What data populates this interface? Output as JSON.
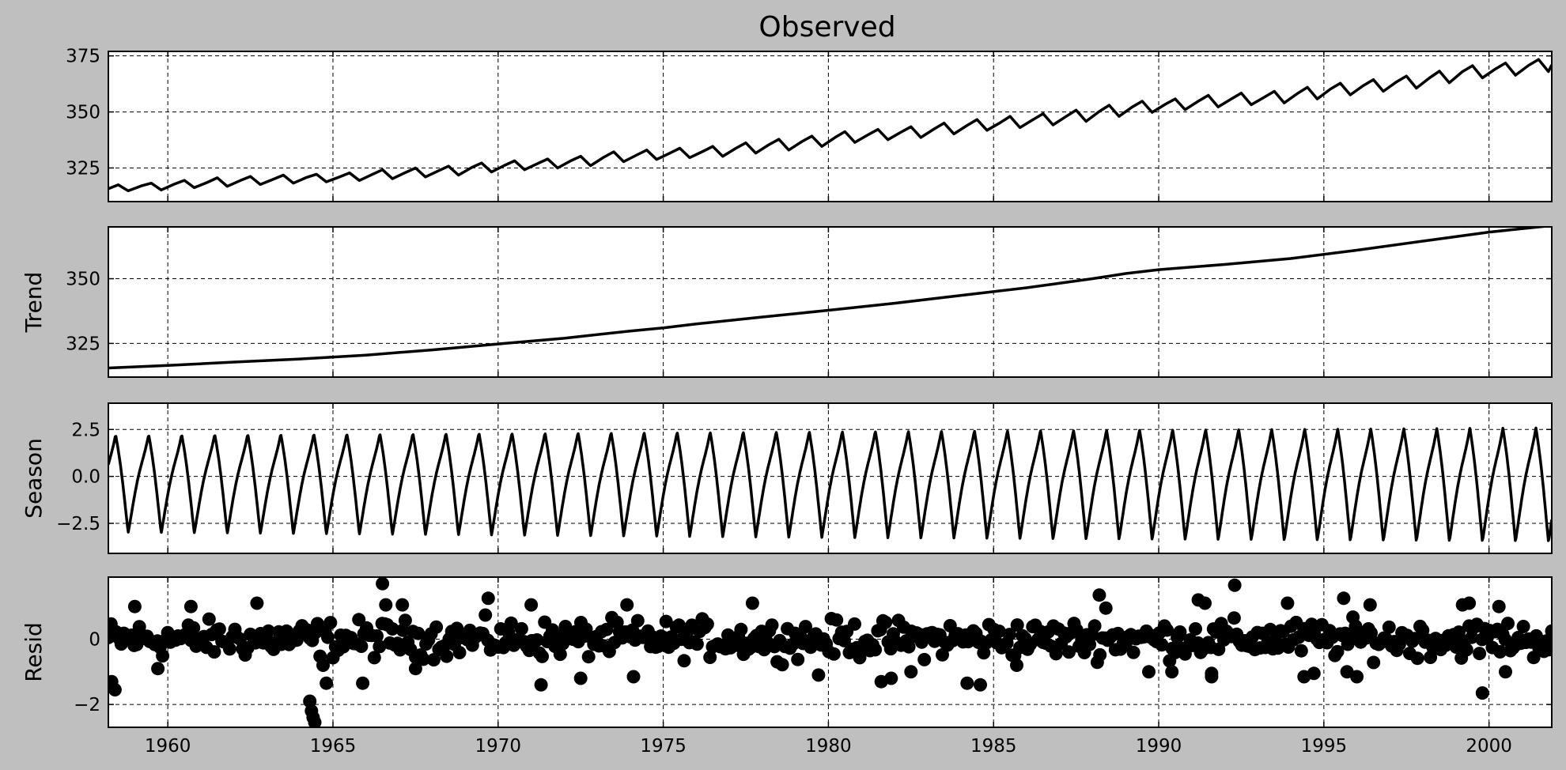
{
  "chart_data": [
    {
      "type": "line",
      "key": "observed",
      "title": "Observed",
      "ylabel": "",
      "xlim": [
        1958.2,
        2001.9
      ],
      "ylim": [
        310,
        377
      ],
      "yticks": [
        325,
        350,
        375
      ],
      "ytick_labels": [
        "325",
        "350",
        "375"
      ],
      "grid": true,
      "series": [
        {
          "name": "observed",
          "points": [
            [
              1958.2,
              315.7
            ],
            [
              1958.5,
              317.5
            ],
            [
              1958.8,
              314.8
            ],
            [
              1959.2,
              317.0
            ],
            [
              1959.5,
              318.2
            ],
            [
              1959.8,
              315.2
            ],
            [
              1960.2,
              317.8
            ],
            [
              1960.5,
              319.5
            ],
            [
              1960.8,
              316.2
            ],
            [
              1961.2,
              318.6
            ],
            [
              1961.5,
              320.6
            ],
            [
              1961.8,
              316.8
            ],
            [
              1962.2,
              319.4
            ],
            [
              1962.5,
              321.2
            ],
            [
              1962.8,
              317.6
            ],
            [
              1963.2,
              320.0
            ],
            [
              1963.5,
              321.8
            ],
            [
              1963.8,
              318.2
            ],
            [
              1964.2,
              320.8
            ],
            [
              1964.5,
              322.2
            ],
            [
              1964.8,
              318.8
            ],
            [
              1965.2,
              321.0
            ],
            [
              1965.5,
              322.8
            ],
            [
              1965.8,
              319.4
            ],
            [
              1966.2,
              322.2
            ],
            [
              1966.5,
              324.2
            ],
            [
              1966.8,
              320.2
            ],
            [
              1967.2,
              323.0
            ],
            [
              1967.5,
              325.0
            ],
            [
              1967.8,
              321.0
            ],
            [
              1968.2,
              323.8
            ],
            [
              1968.5,
              325.8
            ],
            [
              1968.8,
              321.8
            ],
            [
              1969.2,
              325.2
            ],
            [
              1969.5,
              327.2
            ],
            [
              1969.8,
              323.2
            ],
            [
              1970.2,
              326.2
            ],
            [
              1970.5,
              328.2
            ],
            [
              1970.8,
              324.2
            ],
            [
              1971.2,
              327.0
            ],
            [
              1971.5,
              329.0
            ],
            [
              1971.8,
              325.0
            ],
            [
              1972.2,
              328.2
            ],
            [
              1972.5,
              330.2
            ],
            [
              1972.8,
              326.0
            ],
            [
              1973.2,
              329.8
            ],
            [
              1973.5,
              332.2
            ],
            [
              1973.8,
              327.8
            ],
            [
              1974.2,
              330.8
            ],
            [
              1974.5,
              333.0
            ],
            [
              1974.8,
              328.8
            ],
            [
              1975.2,
              331.6
            ],
            [
              1975.5,
              333.8
            ],
            [
              1975.8,
              329.6
            ],
            [
              1976.2,
              332.4
            ],
            [
              1976.5,
              334.6
            ],
            [
              1976.8,
              330.2
            ],
            [
              1977.2,
              333.8
            ],
            [
              1977.5,
              336.2
            ],
            [
              1977.8,
              331.6
            ],
            [
              1978.2,
              335.4
            ],
            [
              1978.5,
              337.8
            ],
            [
              1978.8,
              333.0
            ],
            [
              1979.2,
              336.8
            ],
            [
              1979.5,
              339.2
            ],
            [
              1979.8,
              334.6
            ],
            [
              1980.2,
              338.6
            ],
            [
              1980.5,
              341.2
            ],
            [
              1980.8,
              336.4
            ],
            [
              1981.2,
              339.8
            ],
            [
              1981.5,
              342.2
            ],
            [
              1981.8,
              337.6
            ],
            [
              1982.2,
              341.0
            ],
            [
              1982.5,
              343.4
            ],
            [
              1982.8,
              338.6
            ],
            [
              1983.2,
              342.4
            ],
            [
              1983.5,
              345.0
            ],
            [
              1983.8,
              340.2
            ],
            [
              1984.2,
              344.0
            ],
            [
              1984.5,
              346.6
            ],
            [
              1984.8,
              341.8
            ],
            [
              1985.2,
              345.2
            ],
            [
              1985.5,
              348.0
            ],
            [
              1985.8,
              343.0
            ],
            [
              1986.2,
              346.6
            ],
            [
              1986.5,
              349.2
            ],
            [
              1986.8,
              344.2
            ],
            [
              1987.2,
              348.0
            ],
            [
              1987.5,
              350.8
            ],
            [
              1987.8,
              345.8
            ],
            [
              1988.2,
              350.2
            ],
            [
              1988.5,
              353.0
            ],
            [
              1988.8,
              348.0
            ],
            [
              1989.2,
              352.2
            ],
            [
              1989.5,
              354.8
            ],
            [
              1989.8,
              349.8
            ],
            [
              1990.2,
              353.4
            ],
            [
              1990.5,
              355.8
            ],
            [
              1990.8,
              351.0
            ],
            [
              1991.2,
              354.8
            ],
            [
              1991.5,
              357.4
            ],
            [
              1991.8,
              352.2
            ],
            [
              1992.2,
              355.8
            ],
            [
              1992.5,
              358.4
            ],
            [
              1992.8,
              353.2
            ],
            [
              1993.2,
              356.6
            ],
            [
              1993.5,
              359.2
            ],
            [
              1993.8,
              354.0
            ],
            [
              1994.2,
              358.2
            ],
            [
              1994.5,
              361.0
            ],
            [
              1994.8,
              355.8
            ],
            [
              1995.2,
              360.2
            ],
            [
              1995.5,
              362.8
            ],
            [
              1995.8,
              357.6
            ],
            [
              1996.2,
              361.8
            ],
            [
              1996.5,
              364.4
            ],
            [
              1996.8,
              359.2
            ],
            [
              1997.2,
              363.4
            ],
            [
              1997.5,
              366.0
            ],
            [
              1997.8,
              360.6
            ],
            [
              1998.2,
              365.2
            ],
            [
              1998.5,
              368.2
            ],
            [
              1998.8,
              363.0
            ],
            [
              1999.2,
              368.0
            ],
            [
              1999.5,
              370.6
            ],
            [
              1999.8,
              365.2
            ],
            [
              2000.2,
              369.2
            ],
            [
              2000.5,
              371.8
            ],
            [
              2000.8,
              366.4
            ],
            [
              2001.2,
              370.8
            ],
            [
              2001.5,
              373.4
            ],
            [
              2001.8,
              368.0
            ],
            [
              2001.9,
              371.0
            ]
          ]
        }
      ]
    },
    {
      "type": "line",
      "key": "trend",
      "title": "",
      "ylabel": "Trend",
      "xlim": [
        1958.2,
        2001.9
      ],
      "ylim": [
        312,
        370
      ],
      "yticks": [
        325,
        350
      ],
      "ytick_labels": [
        "325",
        "350"
      ],
      "grid": true,
      "series": [
        {
          "name": "trend",
          "points": [
            [
              1958.2,
              315.5
            ],
            [
              1960,
              316.5
            ],
            [
              1962,
              317.8
            ],
            [
              1964,
              319.0
            ],
            [
              1966,
              320.5
            ],
            [
              1968,
              322.5
            ],
            [
              1970,
              324.8
            ],
            [
              1972,
              327.0
            ],
            [
              1974,
              329.8
            ],
            [
              1975,
              331.0
            ],
            [
              1976,
              332.5
            ],
            [
              1978,
              335.2
            ],
            [
              1980,
              337.8
            ],
            [
              1982,
              340.5
            ],
            [
              1984,
              343.5
            ],
            [
              1986,
              346.5
            ],
            [
              1988,
              350.0
            ],
            [
              1989,
              352.0
            ],
            [
              1990,
              353.5
            ],
            [
              1992,
              355.5
            ],
            [
              1994,
              357.8
            ],
            [
              1996,
              361.0
            ],
            [
              1998,
              364.5
            ],
            [
              2000,
              368.0
            ],
            [
              2001.9,
              370.5
            ]
          ]
        }
      ]
    },
    {
      "type": "line",
      "key": "season",
      "title": "",
      "ylabel": "Season",
      "xlim": [
        1958.2,
        2001.9
      ],
      "ylim": [
        -4.1,
        3.9
      ],
      "yticks": [
        -2.5,
        0.0,
        2.5
      ],
      "ytick_labels": [
        "−2.5",
        "0.0",
        "2.5"
      ],
      "grid": true,
      "seasonal_amplitude_start": 3.0,
      "seasonal_amplitude_end": 3.5,
      "period_years": 1
    },
    {
      "type": "scatter",
      "key": "resid",
      "title": "",
      "ylabel": "Resid",
      "xlim": [
        1958.2,
        2001.9
      ],
      "ylim": [
        -2.7,
        1.9
      ],
      "yticks": [
        -2,
        0
      ],
      "ytick_labels": [
        "−2",
        "0"
      ],
      "grid": true,
      "xticks": [
        1960,
        1965,
        1970,
        1975,
        1980,
        1985,
        1990,
        1995,
        2000
      ],
      "xtick_labels": [
        "1960",
        "1965",
        "1970",
        "1975",
        "1980",
        "1985",
        "1990",
        "1995",
        "2000"
      ],
      "outliers": [
        [
          1958.3,
          -1.3
        ],
        [
          1958.4,
          -1.55
        ],
        [
          1959.0,
          1.0
        ],
        [
          1959.7,
          -0.9
        ],
        [
          1960.7,
          1.0
        ],
        [
          1962.7,
          1.1
        ],
        [
          1964.3,
          -1.9
        ],
        [
          1964.35,
          -2.2
        ],
        [
          1964.4,
          -2.4
        ],
        [
          1964.45,
          -2.55
        ],
        [
          1964.7,
          -0.8
        ],
        [
          1964.8,
          -1.35
        ],
        [
          1965.9,
          -1.35
        ],
        [
          1966.5,
          1.7
        ],
        [
          1966.6,
          1.05
        ],
        [
          1967.1,
          1.05
        ],
        [
          1967.5,
          -0.9
        ],
        [
          1969.7,
          1.25
        ],
        [
          1971.0,
          1.05
        ],
        [
          1971.3,
          -1.4
        ],
        [
          1972.5,
          -1.2
        ],
        [
          1973.9,
          1.05
        ],
        [
          1974.1,
          -1.15
        ],
        [
          1977.7,
          1.1
        ],
        [
          1979.7,
          -1.1
        ],
        [
          1981.6,
          -1.3
        ],
        [
          1981.9,
          -1.2
        ],
        [
          1982.5,
          -1.0
        ],
        [
          1984.2,
          -1.35
        ],
        [
          1984.6,
          -1.4
        ],
        [
          1985.7,
          -0.8
        ],
        [
          1988.2,
          1.35
        ],
        [
          1988.4,
          0.95
        ],
        [
          1989.7,
          -1.0
        ],
        [
          1990.4,
          -1.0
        ],
        [
          1991.2,
          1.2
        ],
        [
          1991.4,
          1.1
        ],
        [
          1991.6,
          -1.05
        ],
        [
          1991.6,
          -1.15
        ],
        [
          1992.3,
          1.65
        ],
        [
          1993.9,
          1.1
        ],
        [
          1994.4,
          -1.15
        ],
        [
          1994.7,
          -1.05
        ],
        [
          1995.6,
          1.25
        ],
        [
          1995.7,
          -1.0
        ],
        [
          1996.0,
          -1.15
        ],
        [
          1996.4,
          1.05
        ],
        [
          1999.2,
          1.05
        ],
        [
          1999.4,
          1.1
        ],
        [
          1999.8,
          -1.65
        ],
        [
          2000.3,
          1.0
        ],
        [
          2000.5,
          -1.0
        ]
      ]
    }
  ]
}
